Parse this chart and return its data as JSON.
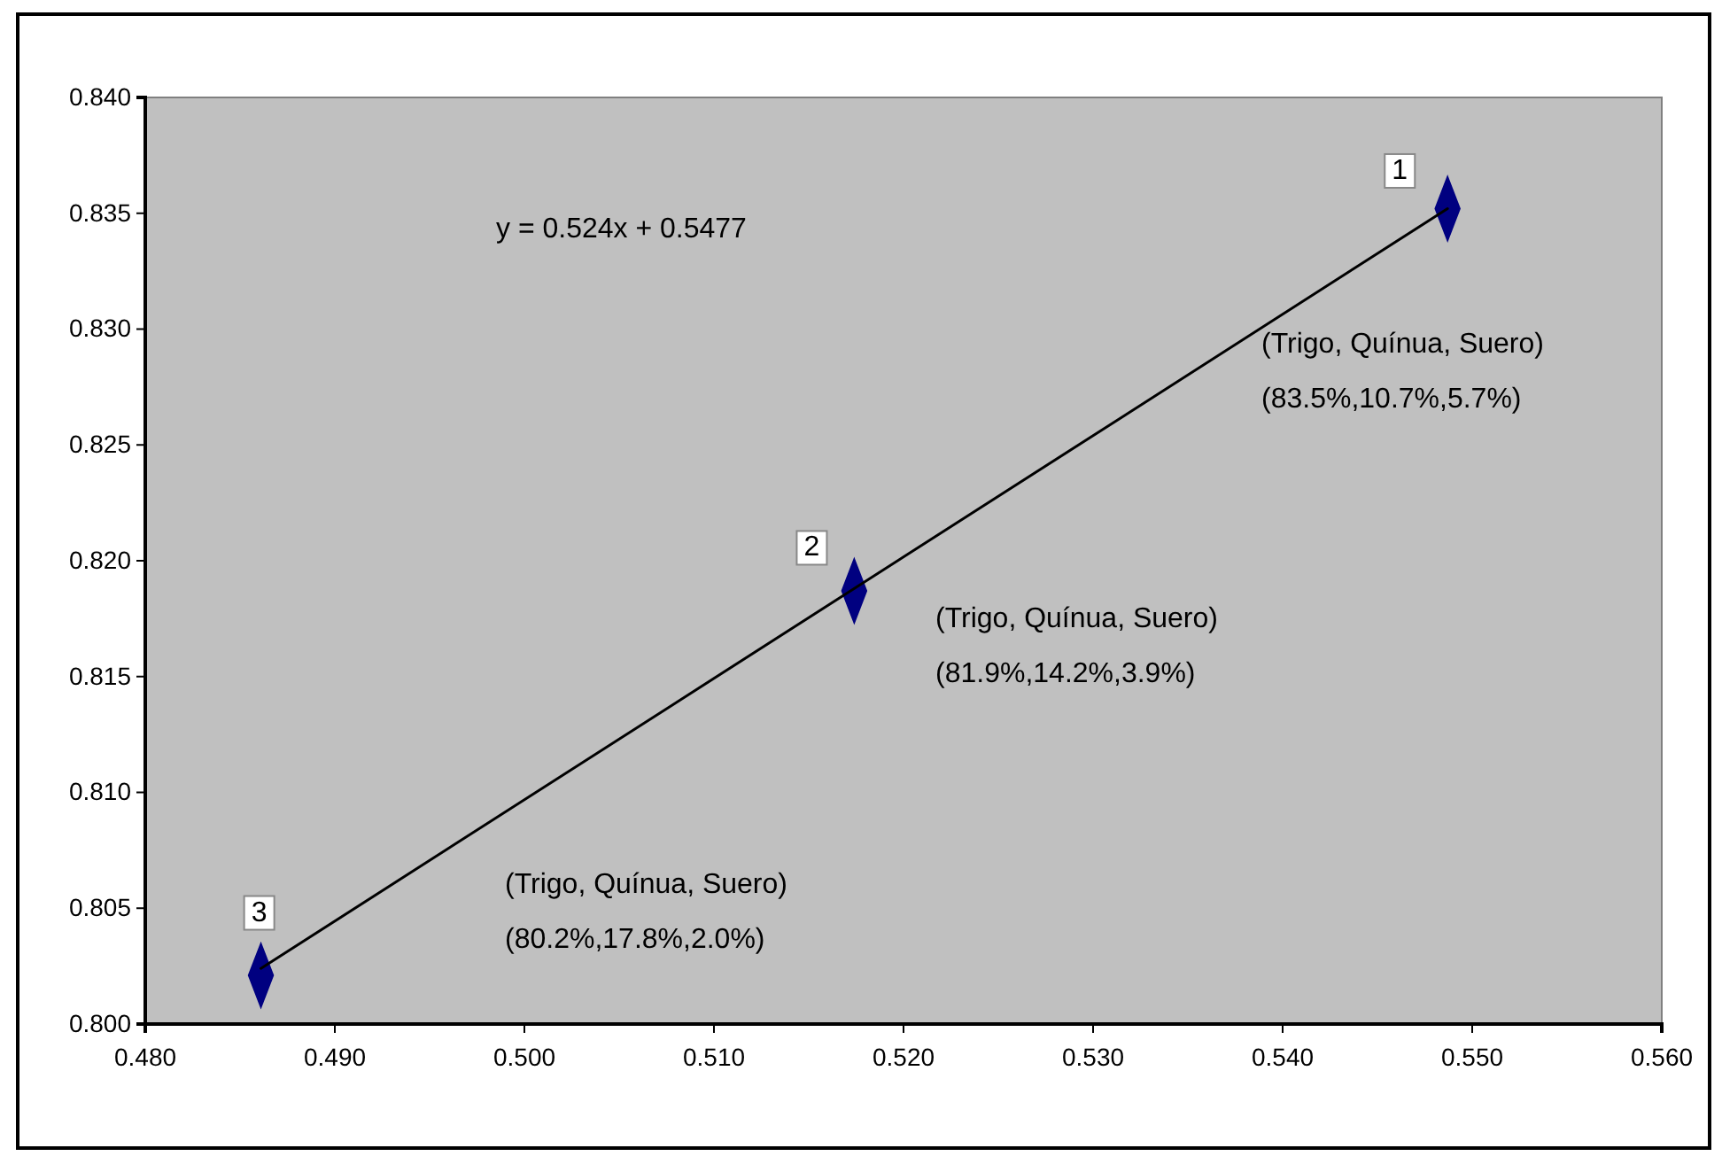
{
  "chart_data": {
    "type": "scatter",
    "xlim": [
      0.48,
      0.56
    ],
    "ylim": [
      0.8,
      0.84
    ],
    "xticks": [
      {
        "value": 0.48,
        "label": "0.480"
      },
      {
        "value": 0.49,
        "label": "0.490"
      },
      {
        "value": 0.5,
        "label": "0.500"
      },
      {
        "value": 0.51,
        "label": "0.510"
      },
      {
        "value": 0.52,
        "label": "0.520"
      },
      {
        "value": 0.53,
        "label": "0.530"
      },
      {
        "value": 0.54,
        "label": "0.540"
      },
      {
        "value": 0.55,
        "label": "0.550"
      },
      {
        "value": 0.56,
        "label": "0.560"
      }
    ],
    "yticks": [
      {
        "value": 0.8,
        "label": "0.800"
      },
      {
        "value": 0.805,
        "label": "0.805"
      },
      {
        "value": 0.81,
        "label": "0.810"
      },
      {
        "value": 0.815,
        "label": "0.815"
      },
      {
        "value": 0.82,
        "label": "0.820"
      },
      {
        "value": 0.825,
        "label": "0.825"
      },
      {
        "value": 0.83,
        "label": "0.830"
      },
      {
        "value": 0.835,
        "label": "0.835"
      },
      {
        "value": 0.84,
        "label": "0.840"
      }
    ],
    "grid": false,
    "series": [
      {
        "type": "scatter",
        "color": "#000080",
        "marker": "diamond",
        "x": [
          0.5487,
          0.5174,
          0.4861
        ],
        "values": [
          0.8352,
          0.8187,
          0.8021
        ]
      },
      {
        "type": "line",
        "color": "#000000",
        "marker": "none",
        "line_style": "solid",
        "x": [
          0.4861,
          0.5487
        ],
        "values": [
          0.8024,
          0.8352
        ]
      }
    ],
    "annotations": [
      "y = 0.524x + 0.5477",
      {
        "text": "1",
        "x": 0.5487,
        "y": 0.8352
      },
      {
        "text": "2",
        "x": 0.5174,
        "y": 0.8187
      },
      {
        "text": "3",
        "x": 0.4861,
        "y": 0.8021
      },
      "(Trigo, Quínua, Suero)\n(83.5%,10.7%,5.7%)",
      "(Trigo, Quínua, Suero)\n(81.9%,14.2%,3.9%)",
      "(Trigo, Quínua, Suero)\n(80.2%,17.8%,2.0%)"
    ]
  }
}
